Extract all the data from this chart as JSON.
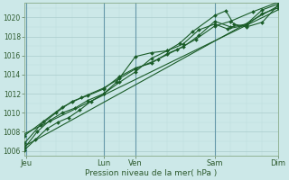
{
  "xlabel": "Pression niveau de la mer( hPa )",
  "background_color": "#cce8e8",
  "grid_major_color": "#aacccc",
  "grid_minor_color": "#bbdddd",
  "line_color": "#1a5c28",
  "xlim": [
    0,
    8.0
  ],
  "ylim": [
    1005.5,
    1021.5
  ],
  "yticks": [
    1006,
    1008,
    1010,
    1012,
    1014,
    1016,
    1018,
    1020
  ],
  "xtick_positions": [
    0.05,
    2.5,
    3.5,
    6.0,
    8.0
  ],
  "xtick_labels": [
    "Jeu",
    "Lun",
    "Ven",
    "Sam",
    "Dim"
  ],
  "vlines": [
    0.05,
    2.5,
    3.5,
    6.0
  ],
  "series_with_markers": [
    {
      "x": [
        0.0,
        0.35,
        0.7,
        1.05,
        1.4,
        1.75,
        2.1,
        2.5,
        2.9,
        3.5,
        4.0,
        4.5,
        4.9,
        5.3,
        6.0,
        6.35,
        6.6,
        7.0,
        7.5,
        8.0
      ],
      "y": [
        1006.1,
        1007.2,
        1008.3,
        1009.0,
        1009.5,
        1010.3,
        1011.2,
        1012.0,
        1013.2,
        1015.9,
        1016.3,
        1016.5,
        1017.3,
        1018.5,
        1020.2,
        1020.7,
        1019.3,
        1019.0,
        1019.5,
        1021.3
      ]
    },
    {
      "x": [
        0.0,
        0.4,
        0.8,
        1.2,
        1.6,
        2.0,
        2.5,
        3.0,
        3.5,
        4.0,
        4.5,
        5.0,
        5.5,
        6.0,
        6.4,
        7.0,
        7.5,
        8.0
      ],
      "y": [
        1006.3,
        1008.0,
        1009.2,
        1010.0,
        1010.5,
        1011.3,
        1012.0,
        1013.2,
        1014.3,
        1015.7,
        1016.5,
        1017.2,
        1018.7,
        1019.3,
        1018.8,
        1019.2,
        1020.4,
        1021.0
      ]
    },
    {
      "x": [
        0.0,
        0.5,
        1.0,
        1.5,
        2.0,
        2.5,
        3.0,
        3.5,
        4.0,
        4.5,
        5.0,
        5.5,
        6.0,
        6.5,
        7.0,
        7.5,
        8.0
      ],
      "y": [
        1006.8,
        1008.7,
        1010.0,
        1011.2,
        1011.8,
        1012.5,
        1013.8,
        1014.7,
        1015.2,
        1016.2,
        1016.9,
        1018.1,
        1019.6,
        1019.0,
        1019.3,
        1020.8,
        1021.4
      ]
    },
    {
      "x": [
        0.0,
        0.6,
        1.2,
        1.8,
        2.5,
        3.0,
        3.5,
        4.2,
        4.8,
        5.4,
        6.0,
        6.5,
        7.2,
        8.0
      ],
      "y": [
        1007.6,
        1009.1,
        1010.6,
        1011.6,
        1012.6,
        1013.6,
        1014.6,
        1015.6,
        1016.6,
        1017.7,
        1019.1,
        1019.6,
        1020.6,
        1021.6
      ]
    }
  ],
  "series_no_markers": [
    {
      "x": [
        0.0,
        8.0
      ],
      "y": [
        1006.5,
        1021.2
      ]
    },
    {
      "x": [
        0.0,
        8.0
      ],
      "y": [
        1007.8,
        1020.8
      ]
    }
  ]
}
